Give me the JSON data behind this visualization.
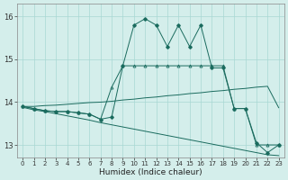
{
  "xlabel": "Humidex (Indice chaleur)",
  "bg_color": "#d4eeeb",
  "grid_color": "#a8d8d4",
  "line_color": "#1a6b5e",
  "xlim": [
    -0.5,
    23.5
  ],
  "ylim": [
    12.7,
    16.3
  ],
  "yticks": [
    13,
    14,
    15,
    16
  ],
  "xticks": [
    0,
    1,
    2,
    3,
    4,
    5,
    6,
    7,
    8,
    9,
    10,
    11,
    12,
    13,
    14,
    15,
    16,
    17,
    18,
    19,
    20,
    21,
    22,
    23
  ],
  "series_jagged": [
    13.9,
    13.85,
    13.8,
    13.78,
    13.78,
    13.75,
    13.72,
    13.6,
    13.65,
    14.85,
    15.8,
    15.95,
    15.8,
    15.3,
    15.8,
    15.3,
    15.8,
    14.8,
    14.8,
    13.85,
    13.85,
    13.05,
    12.82,
    13.0
  ],
  "series_triangle": [
    13.9,
    13.85,
    13.8,
    13.78,
    13.78,
    13.75,
    13.72,
    13.6,
    14.35,
    14.85,
    14.85,
    14.85,
    14.85,
    14.85,
    14.85,
    14.85,
    14.85,
    14.85,
    14.85,
    13.85,
    13.85,
    13.0,
    13.0,
    13.0
  ],
  "series_rising": [
    13.9,
    13.9,
    13.92,
    13.93,
    13.95,
    13.97,
    13.99,
    14.0,
    14.02,
    14.05,
    14.07,
    14.1,
    14.12,
    14.15,
    14.17,
    14.2,
    14.22,
    14.25,
    14.27,
    14.3,
    14.32,
    14.35,
    14.37,
    13.87
  ],
  "series_declining": [
    13.88,
    13.82,
    13.78,
    13.73,
    13.68,
    13.63,
    13.58,
    13.52,
    13.47,
    13.42,
    13.37,
    13.32,
    13.27,
    13.22,
    13.17,
    13.12,
    13.07,
    13.02,
    12.97,
    12.92,
    12.87,
    12.82,
    12.77,
    12.75
  ]
}
